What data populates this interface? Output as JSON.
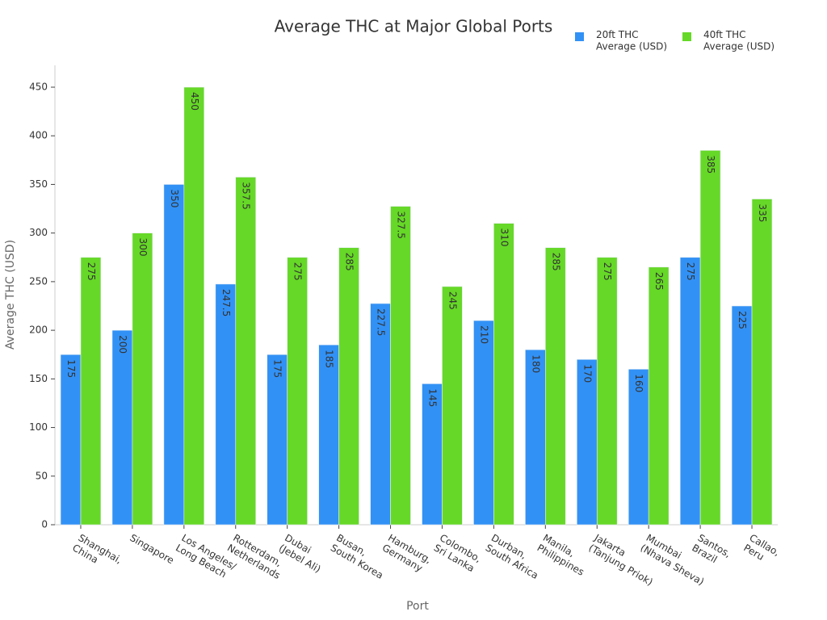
{
  "chart_data": {
    "type": "bar",
    "title": "Average THC at Major Global Ports",
    "x_label": "Port",
    "y_label": "Average THC (USD)",
    "categories": [
      "Shanghai,\nChina",
      "Singapore",
      "Los Angeles/\nLong Beach",
      "Rotterdam,\nNetherlands",
      "Dubai\n(Jebel Ali)",
      "Busan,\nSouth Korea",
      "Hamburg,\nGermany",
      "Colombo,\nSri Lanka",
      "Durban,\nSouth Africa",
      "Manila,\nPhilippines",
      "Jakarta\n(Tanjung Priok)",
      "Mumbai\n(Nhava Sheva)",
      "Santos,\nBrazil",
      "Callao,\nPeru"
    ],
    "series": [
      {
        "name": "20ft THC\nAverage (USD)",
        "color": "#3291f5",
        "values": [
          175,
          200,
          350,
          247.5,
          175,
          185,
          227.5,
          145,
          210,
          180,
          170,
          160,
          275,
          225
        ]
      },
      {
        "name": "40ft THC\nAverage (USD)",
        "color": "#66d827",
        "values": [
          275,
          300,
          450,
          357.5,
          275,
          285,
          327.5,
          245,
          310,
          285,
          275,
          265,
          385,
          335
        ]
      }
    ],
    "ylim": [
      0,
      472.5
    ],
    "yticks": [
      0,
      50,
      100,
      150,
      200,
      250,
      300,
      350,
      400,
      450
    ],
    "legend": "top-right"
  }
}
